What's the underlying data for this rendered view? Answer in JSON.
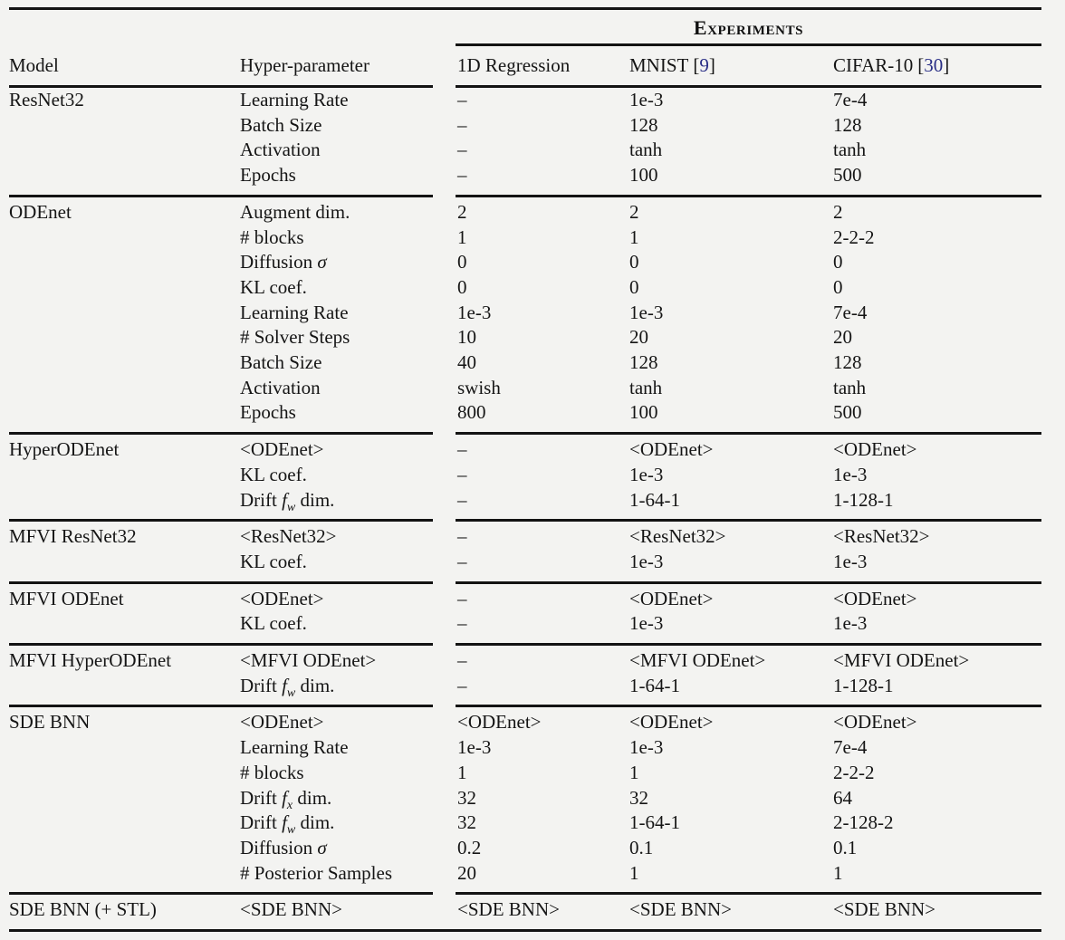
{
  "page": {
    "background": "#f3f3f1",
    "text_color": "#151515",
    "citation_color": "#2a2f86"
  },
  "table": {
    "experiments_header": "Experiments",
    "citation": {
      "open": "[",
      "close": "]"
    },
    "columns": {
      "model": "Model",
      "hyperparameter": "Hyper-parameter",
      "experiments": [
        {
          "label": "1D Regression",
          "cite": ""
        },
        {
          "label": "MNIST",
          "cite": "9"
        },
        {
          "label": "CIFAR-10",
          "cite": "30"
        }
      ]
    },
    "sections": [
      {
        "model": "ResNet32",
        "rows": [
          {
            "param": "Learning Rate",
            "values": [
              "–",
              "1e-3",
              "7e-4"
            ]
          },
          {
            "param": "Batch Size",
            "values": [
              "–",
              "128",
              "128"
            ]
          },
          {
            "param": "Activation",
            "values": [
              "–",
              "tanh",
              "tanh"
            ]
          },
          {
            "param": "Epochs",
            "values": [
              "–",
              "100",
              "500"
            ]
          }
        ]
      },
      {
        "model": "ODEnet",
        "rows": [
          {
            "param": "Augment dim.",
            "values": [
              "2",
              "2",
              "2"
            ]
          },
          {
            "param": "# blocks",
            "values": [
              "1",
              "1",
              "2-2-2"
            ]
          },
          {
            "param": "Diffusion *σ*",
            "values": [
              "0",
              "0",
              "0"
            ]
          },
          {
            "param": "KL coef.",
            "values": [
              "0",
              "0",
              "0"
            ]
          },
          {
            "param": "Learning Rate",
            "values": [
              "1e-3",
              "1e-3",
              "7e-4"
            ]
          },
          {
            "param": "# Solver Steps",
            "values": [
              "10",
              "20",
              "20"
            ]
          },
          {
            "param": "Batch Size",
            "values": [
              "40",
              "128",
              "128"
            ]
          },
          {
            "param": "Activation",
            "values": [
              "swish",
              "tanh",
              "tanh"
            ]
          },
          {
            "param": "Epochs",
            "values": [
              "800",
              "100",
              "500"
            ]
          }
        ]
      },
      {
        "model": "HyperODEnet",
        "rows": [
          {
            "param": "<ODEnet>",
            "values": [
              "–",
              "<ODEnet>",
              "<ODEnet>"
            ]
          },
          {
            "param": "KL coef.",
            "values": [
              "–",
              "1e-3",
              "1e-3"
            ]
          },
          {
            "param": "Drift *f*_{w} dim.",
            "values": [
              "–",
              "1-64-1",
              "1-128-1"
            ]
          }
        ]
      },
      {
        "model": "MFVI ResNet32",
        "rows": [
          {
            "param": "<ResNet32>",
            "values": [
              "–",
              "<ResNet32>",
              "<ResNet32>"
            ]
          },
          {
            "param": "KL coef.",
            "values": [
              "–",
              "1e-3",
              "1e-3"
            ]
          }
        ]
      },
      {
        "model": "MFVI ODEnet",
        "rows": [
          {
            "param": "<ODEnet>",
            "values": [
              "–",
              "<ODEnet>",
              "<ODEnet>"
            ]
          },
          {
            "param": "KL coef.",
            "values": [
              "–",
              "1e-3",
              "1e-3"
            ]
          }
        ]
      },
      {
        "model": "MFVI HyperODEnet",
        "rows": [
          {
            "param": "<MFVI ODEnet>",
            "values": [
              "–",
              "<MFVI ODEnet>",
              "<MFVI ODEnet>"
            ]
          },
          {
            "param": "Drift *f*_{w} dim.",
            "values": [
              "–",
              "1-64-1",
              "1-128-1"
            ]
          }
        ]
      },
      {
        "model": "SDE BNN",
        "rows": [
          {
            "param": "<ODEnet>",
            "values": [
              "<ODEnet>",
              "<ODEnet>",
              "<ODEnet>"
            ]
          },
          {
            "param": "Learning Rate",
            "values": [
              "1e-3",
              "1e-3",
              "7e-4"
            ]
          },
          {
            "param": "# blocks",
            "values": [
              "1",
              "1",
              "2-2-2"
            ]
          },
          {
            "param": "Drift *f*_{x} dim.",
            "values": [
              "32",
              "32",
              "64"
            ]
          },
          {
            "param": "Drift *f*_{w} dim.",
            "values": [
              "32",
              "1-64-1",
              "2-128-2"
            ]
          },
          {
            "param": "Diffusion *σ*",
            "values": [
              "0.2",
              "0.1",
              "0.1"
            ]
          },
          {
            "param": "# Posterior Samples",
            "values": [
              "20",
              "1",
              "1"
            ]
          }
        ]
      },
      {
        "model": "SDE BNN (+ STL)",
        "rows": [
          {
            "param": "<SDE BNN>",
            "values": [
              "<SDE BNN>",
              "<SDE BNN>",
              "<SDE BNN>"
            ]
          }
        ]
      }
    ]
  }
}
